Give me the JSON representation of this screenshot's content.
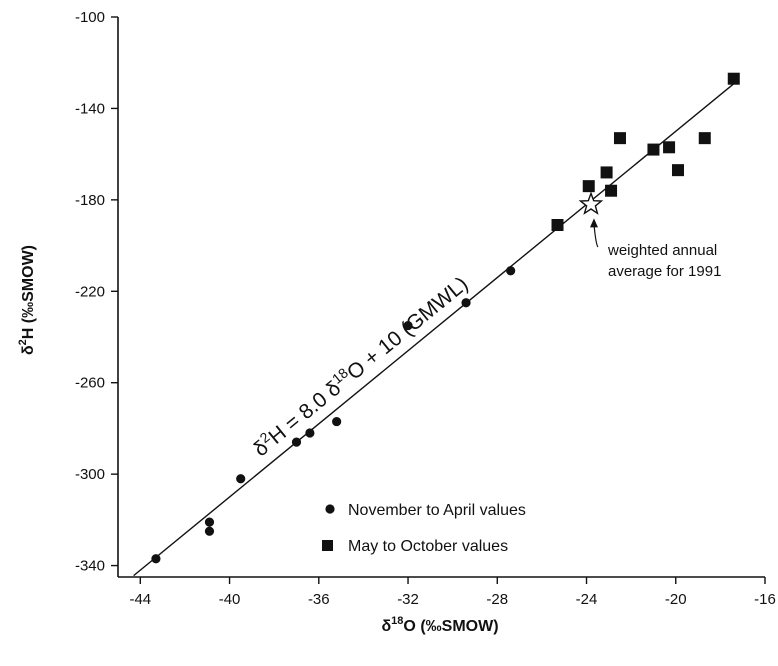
{
  "chart_data": {
    "type": "scatter",
    "title": "",
    "xlabel": {
      "prefix": "δ",
      "sup": "18",
      "main": "O (‰SMOW)"
    },
    "ylabel": {
      "prefix": "δ",
      "sup": "2",
      "main": "H (‰SMOW)"
    },
    "xlim": [
      -45,
      -16
    ],
    "ylim": [
      -345,
      -100
    ],
    "x_ticks": [
      -44,
      -40,
      -36,
      -32,
      -28,
      -24,
      -20,
      -16
    ],
    "y_ticks": [
      -100,
      -140,
      -180,
      -220,
      -260,
      -300,
      -340
    ],
    "grid": false,
    "series": [
      {
        "name": "November to April values",
        "marker": "circle",
        "color": "#111111",
        "points": [
          [
            -43.3,
            -337
          ],
          [
            -40.9,
            -321
          ],
          [
            -40.9,
            -325
          ],
          [
            -39.5,
            -302
          ],
          [
            -37.0,
            -286
          ],
          [
            -36.4,
            -282
          ],
          [
            -35.2,
            -277
          ],
          [
            -32.0,
            -235
          ],
          [
            -29.4,
            -225
          ],
          [
            -27.4,
            -211
          ]
        ]
      },
      {
        "name": "May to October values",
        "marker": "square",
        "color": "#111111",
        "points": [
          [
            -25.3,
            -191
          ],
          [
            -23.9,
            -174
          ],
          [
            -23.1,
            -168
          ],
          [
            -22.9,
            -176
          ],
          [
            -22.5,
            -153
          ],
          [
            -21.0,
            -158
          ],
          [
            -20.3,
            -157
          ],
          [
            -19.9,
            -167
          ],
          [
            -18.7,
            -153
          ],
          [
            -17.4,
            -127
          ]
        ]
      }
    ],
    "reference_line": {
      "slope": 8.0,
      "intercept": 10,
      "x_range": [
        -44.3,
        -17.3
      ],
      "label": {
        "lhs_prefix": "δ",
        "lhs_sup": "2",
        "lhs_rest": "H = 8.0 δ",
        "rhs_sup": "18",
        "rhs_rest": "O + 10 (GMWL)"
      }
    },
    "annotation": {
      "marker": "star",
      "x": -23.8,
      "y": -182,
      "lines": [
        "weighted annual",
        "average for 1991"
      ]
    },
    "legend": {
      "placement": "bottom-right",
      "entries": [
        {
          "marker": "circle",
          "label": "November to April values"
        },
        {
          "marker": "square",
          "label": "May to October values"
        }
      ]
    }
  }
}
